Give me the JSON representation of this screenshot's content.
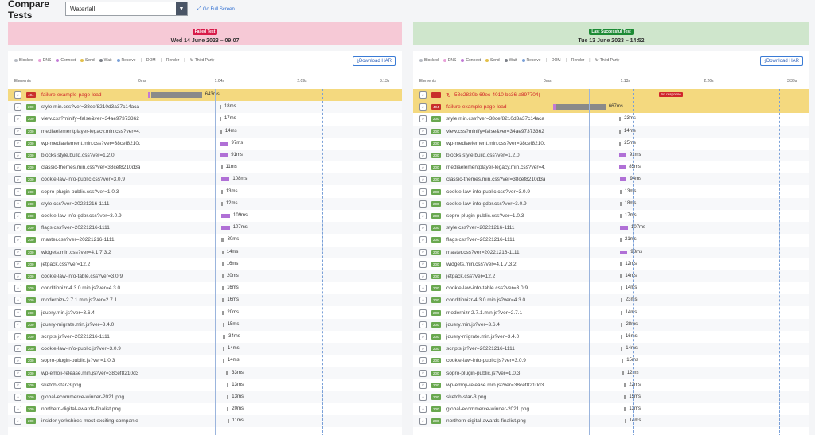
{
  "header": {
    "title": "Compare Tests",
    "view_select": "Waterfall",
    "full_screen": "Go Full Screen"
  },
  "left": {
    "badge": "Failed Test",
    "date": "Wed 14 June 2023 – 09:07",
    "legend": [
      "Blocked",
      "DNS",
      "Connect",
      "Send",
      "Wait",
      "Receive",
      "DOM",
      "Render",
      "Third Party"
    ],
    "download_har": "Download HAR",
    "axis": {
      "elements": "Elements",
      "ticks": [
        "0ms",
        "1.04s",
        "2.09s",
        "3.13s"
      ]
    },
    "rows": [
      {
        "code": "404",
        "name": "failure-example-page-load",
        "ms": "643ms",
        "start": 0.0,
        "dur": 0.205,
        "type": "main"
      },
      {
        "code": "200",
        "name": "style.min.css?ver=38cef8210d3a37c14aca",
        "ms": "18ms",
        "start": 0.315,
        "dur": 0.006
      },
      {
        "code": "200",
        "name": "view.css?minify=false&ver=34ae97373362",
        "ms": "17ms",
        "start": 0.315,
        "dur": 0.006
      },
      {
        "code": "200",
        "name": "mediaelementplayer-legacy.min.css?ver=4.",
        "ms": "14ms",
        "start": 0.318,
        "dur": 0.005
      },
      {
        "code": "200",
        "name": "wp-mediaelement.min.css?ver=38cef8210d",
        "ms": "97ms",
        "start": 0.318,
        "dur": 0.031
      },
      {
        "code": "200",
        "name": "blocks.style.build.css?ver=1.2.0",
        "ms": "91ms",
        "start": 0.319,
        "dur": 0.029
      },
      {
        "code": "200",
        "name": "classic-themes.min.css?ver=38cef8210d3a",
        "ms": "11ms",
        "start": 0.32,
        "dur": 0.004
      },
      {
        "code": "200",
        "name": "cookie-law-info-public.css?ver=3.0.9",
        "ms": "108ms",
        "start": 0.32,
        "dur": 0.035
      },
      {
        "code": "200",
        "name": "sopro-plugin-public.css?ver=1.0.3",
        "ms": "13ms",
        "start": 0.321,
        "dur": 0.004
      },
      {
        "code": "200",
        "name": "style.css?ver=20221216-1111",
        "ms": "12ms",
        "start": 0.321,
        "dur": 0.004
      },
      {
        "code": "200",
        "name": "cookie-law-info-gdpr.css?ver=3.0.9",
        "ms": "109ms",
        "start": 0.322,
        "dur": 0.035
      },
      {
        "code": "200",
        "name": "flags.css?ver=20221216-1111",
        "ms": "107ms",
        "start": 0.322,
        "dur": 0.034
      },
      {
        "code": "200",
        "name": "master.css?ver=20221216-1111",
        "ms": "30ms",
        "start": 0.323,
        "dur": 0.01
      },
      {
        "code": "200",
        "name": "widgets.min.css?ver=4.1.7.3.2",
        "ms": "14ms",
        "start": 0.324,
        "dur": 0.005
      },
      {
        "code": "200",
        "name": "jetpack.css?ver=12.2",
        "ms": "16ms",
        "start": 0.324,
        "dur": 0.005
      },
      {
        "code": "200",
        "name": "cookie-law-info-table.css?ver=3.0.9",
        "ms": "20ms",
        "start": 0.325,
        "dur": 0.006
      },
      {
        "code": "200",
        "name": "conditionizr-4.3.0.min.js?ver=4.3.0",
        "ms": "16ms",
        "start": 0.325,
        "dur": 0.005
      },
      {
        "code": "200",
        "name": "modernizr-2.7.1.min.js?ver=2.7.1",
        "ms": "16ms",
        "start": 0.326,
        "dur": 0.005
      },
      {
        "code": "200",
        "name": "jquery.min.js?ver=3.6.4",
        "ms": "20ms",
        "start": 0.326,
        "dur": 0.006
      },
      {
        "code": "200",
        "name": "jquery-migrate.min.js?ver=3.4.0",
        "ms": "15ms",
        "start": 0.327,
        "dur": 0.005
      },
      {
        "code": "200",
        "name": "scripts.js?ver=20221216-1111",
        "ms": "34ms",
        "start": 0.327,
        "dur": 0.011
      },
      {
        "code": "200",
        "name": "cookie-law-info-public.js?ver=3.0.9",
        "ms": "14ms",
        "start": 0.328,
        "dur": 0.005
      },
      {
        "code": "200",
        "name": "sopro-plugin-public.js?ver=1.0.3",
        "ms": "14ms",
        "start": 0.328,
        "dur": 0.005
      },
      {
        "code": "200",
        "name": "wp-emoji-release.min.js?ver=38cef8210d3",
        "ms": "33ms",
        "start": 0.34,
        "dur": 0.011
      },
      {
        "code": "200",
        "name": "sketch-star-3.png",
        "ms": "13ms",
        "start": 0.345,
        "dur": 0.004
      },
      {
        "code": "200",
        "name": "global-ecommerce-winner-2021.png",
        "ms": "13ms",
        "start": 0.345,
        "dur": 0.004
      },
      {
        "code": "200",
        "name": "northern-digital-awards-finalist.png",
        "ms": "20ms",
        "start": 0.345,
        "dur": 0.006
      },
      {
        "code": "200",
        "name": "insider-yorkshires-most-exciting-companie",
        "ms": "11ms",
        "start": 0.346,
        "dur": 0.004
      }
    ]
  },
  "right": {
    "badge": "Last Successful Test",
    "date": "Tue 13 June 2023 – 14:52",
    "legend": [
      "Blocked",
      "DNS",
      "Connect",
      "Send",
      "Wait",
      "Receive",
      "DOM",
      "Render",
      "Third Party"
    ],
    "download_har": "Download HAR",
    "axis": {
      "elements": "Elements",
      "ticks": [
        "0ms",
        "1.13s",
        "2.26s",
        "3.39s"
      ]
    },
    "no_response": "No response",
    "rows": [
      {
        "code": "—",
        "name": "58e2820b-69ec-4010-bc36-a897704(",
        "ms": "",
        "start": 0.0,
        "dur": 0.0,
        "type": "noresp"
      },
      {
        "code": "404",
        "name": "failure-example-page-load",
        "ms": "667ms",
        "start": 0.0,
        "dur": 0.197,
        "type": "main"
      },
      {
        "code": "200",
        "name": "style.min.css?ver=38cef8210d3a37c14aca",
        "ms": "23ms",
        "start": 0.29,
        "dur": 0.007
      },
      {
        "code": "200",
        "name": "view.css?minify=false&ver=34ae97373362",
        "ms": "14ms",
        "start": 0.29,
        "dur": 0.004
      },
      {
        "code": "200",
        "name": "wp-mediaelement.min.css?ver=38cef8210d",
        "ms": "25ms",
        "start": 0.29,
        "dur": 0.007
      },
      {
        "code": "200",
        "name": "blocks.style.build.css?ver=1.2.0",
        "ms": "91ms",
        "start": 0.291,
        "dur": 0.027
      },
      {
        "code": "200",
        "name": "mediaelementplayer-legacy.min.css?ver=4.",
        "ms": "85ms",
        "start": 0.291,
        "dur": 0.025
      },
      {
        "code": "200",
        "name": "classic-themes.min.css?ver=38cef8210d3a",
        "ms": "94ms",
        "start": 0.292,
        "dur": 0.028
      },
      {
        "code": "200",
        "name": "cookie-law-info-public.css?ver=3.0.9",
        "ms": "13ms",
        "start": 0.292,
        "dur": 0.004
      },
      {
        "code": "200",
        "name": "cookie-law-info-gdpr.css?ver=3.0.9",
        "ms": "18ms",
        "start": 0.292,
        "dur": 0.005
      },
      {
        "code": "200",
        "name": "sopro-plugin-public.css?ver=1.0.3",
        "ms": "17ms",
        "start": 0.293,
        "dur": 0.005
      },
      {
        "code": "200",
        "name": "style.css?ver=20221216-1111",
        "ms": "107ms",
        "start": 0.293,
        "dur": 0.032
      },
      {
        "code": "200",
        "name": "flags.css?ver=20221216-1111",
        "ms": "21ms",
        "start": 0.293,
        "dur": 0.006
      },
      {
        "code": "200",
        "name": "master.css?ver=20221216-1111",
        "ms": "98ms",
        "start": 0.294,
        "dur": 0.029
      },
      {
        "code": "200",
        "name": "widgets.min.css?ver=4.1.7.3.2",
        "ms": "12ms",
        "start": 0.294,
        "dur": 0.004
      },
      {
        "code": "200",
        "name": "jetpack.css?ver=12.2",
        "ms": "14ms",
        "start": 0.294,
        "dur": 0.004
      },
      {
        "code": "200",
        "name": "cookie-law-info-table.css?ver=3.0.9",
        "ms": "14ms",
        "start": 0.295,
        "dur": 0.004
      },
      {
        "code": "200",
        "name": "conditionizr-4.3.0.min.js?ver=4.3.0",
        "ms": "23ms",
        "start": 0.295,
        "dur": 0.007
      },
      {
        "code": "200",
        "name": "modernizr-2.7.1.min.js?ver=2.7.1",
        "ms": "14ms",
        "start": 0.295,
        "dur": 0.004
      },
      {
        "code": "200",
        "name": "jquery.min.js?ver=3.6.4",
        "ms": "28ms",
        "start": 0.296,
        "dur": 0.008
      },
      {
        "code": "200",
        "name": "jquery-migrate.min.js?ver=3.4.0",
        "ms": "16ms",
        "start": 0.296,
        "dur": 0.005
      },
      {
        "code": "200",
        "name": "scripts.js?ver=20221216-1111",
        "ms": "14ms",
        "start": 0.297,
        "dur": 0.004
      },
      {
        "code": "200",
        "name": "cookie-law-info-public.js?ver=3.0.9",
        "ms": "15ms",
        "start": 0.3,
        "dur": 0.004
      },
      {
        "code": "200",
        "name": "sopro-plugin-public.js?ver=1.0.3",
        "ms": "12ms",
        "start": 0.302,
        "dur": 0.004
      },
      {
        "code": "200",
        "name": "wp-emoji-release.min.js?ver=38cef8210d3",
        "ms": "22ms",
        "start": 0.31,
        "dur": 0.006
      },
      {
        "code": "200",
        "name": "sketch-star-3.png",
        "ms": "15ms",
        "start": 0.31,
        "dur": 0.004
      },
      {
        "code": "200",
        "name": "global-ecommerce-winner-2021.png",
        "ms": "13ms",
        "start": 0.31,
        "dur": 0.004
      },
      {
        "code": "200",
        "name": "northern-digital-awards-finalist.png",
        "ms": "14ms",
        "start": 0.311,
        "dur": 0.004
      }
    ]
  },
  "colors": {
    "blocked": "#b8bcc4",
    "dns": "#e9a0d8",
    "connect": "#c27ad6",
    "send": "#e3c04a",
    "wait": "#7c8088",
    "receive": "#7aa0d8",
    "third_party": "#888888",
    "main_bar": "#8a8a8a",
    "res_bar": "#b070d6",
    "res_bar_short": "#999999"
  }
}
